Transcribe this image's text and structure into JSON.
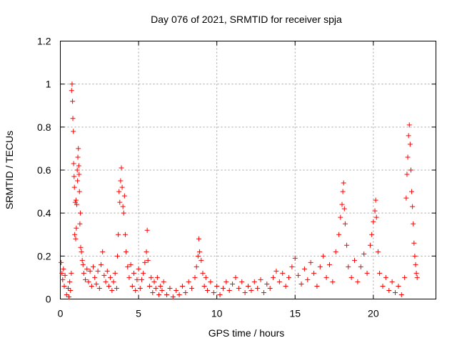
{
  "chart_data": {
    "type": "scatter",
    "title": "Day 076 of 2021, SRMTID for receiver spja",
    "xlabel": "GPS time / hours",
    "ylabel": "SRMTID / TECUs",
    "xlim": [
      0,
      24
    ],
    "ylim": [
      0,
      1.2
    ],
    "xticks": [
      0,
      5,
      10,
      15,
      20
    ],
    "xtick_labels": [
      "0",
      "5",
      "10",
      "15",
      "20"
    ],
    "yticks": [
      0,
      0.2,
      0.4,
      0.6,
      0.8,
      1,
      1.2
    ],
    "ytick_labels": [
      "0",
      "0.2",
      "0.4",
      "0.6",
      "0.8",
      "1",
      "1.2"
    ],
    "grid": true,
    "marker": "plus",
    "color": "#ff0000",
    "series": [
      {
        "name": "SRMTID",
        "points": [
          [
            0.05,
            0.17
          ],
          [
            0.1,
            0.12
          ],
          [
            0.15,
            0.09
          ],
          [
            0.2,
            0.14
          ],
          [
            0.25,
            0.06
          ],
          [
            0.3,
            0.11
          ],
          [
            0.4,
            0.02
          ],
          [
            0.5,
            0.05
          ],
          [
            0.55,
            0.01
          ],
          [
            0.6,
            0.08
          ],
          [
            0.65,
            0.04
          ],
          [
            0.7,
            0.12
          ],
          [
            0.72,
            0.97
          ],
          [
            0.75,
            1.0
          ],
          [
            0.78,
            0.92
          ],
          [
            0.8,
            0.84
          ],
          [
            0.83,
            0.78
          ],
          [
            0.85,
            0.63
          ],
          [
            0.88,
            0.57
          ],
          [
            0.9,
            0.52
          ],
          [
            0.92,
            0.3
          ],
          [
            0.95,
            0.45
          ],
          [
            0.98,
            0.28
          ],
          [
            1.0,
            0.46
          ],
          [
            1.02,
            0.33
          ],
          [
            1.05,
            0.44
          ],
          [
            1.08,
            0.6
          ],
          [
            1.1,
            0.55
          ],
          [
            1.12,
            0.66
          ],
          [
            1.15,
            0.7
          ],
          [
            1.18,
            0.62
          ],
          [
            1.2,
            0.58
          ],
          [
            1.22,
            0.5
          ],
          [
            1.25,
            0.35
          ],
          [
            1.28,
            0.4
          ],
          [
            1.3,
            0.24
          ],
          [
            1.35,
            0.22
          ],
          [
            1.4,
            0.18
          ],
          [
            1.45,
            0.16
          ],
          [
            1.5,
            0.12
          ],
          [
            1.6,
            0.09
          ],
          [
            1.7,
            0.14
          ],
          [
            1.8,
            0.08
          ],
          [
            1.9,
            0.13
          ],
          [
            2.0,
            0.06
          ],
          [
            2.1,
            0.15
          ],
          [
            2.2,
            0.1
          ],
          [
            2.3,
            0.07
          ],
          [
            2.4,
            0.13
          ],
          [
            2.5,
            0.05
          ],
          [
            2.6,
            0.16
          ],
          [
            2.7,
            0.22
          ],
          [
            2.8,
            0.11
          ],
          [
            2.9,
            0.08
          ],
          [
            3.0,
            0.13
          ],
          [
            3.1,
            0.06
          ],
          [
            3.2,
            0.1
          ],
          [
            3.3,
            0.04
          ],
          [
            3.4,
            0.08
          ],
          [
            3.5,
            0.12
          ],
          [
            3.6,
            0.05
          ],
          [
            3.65,
            0.2
          ],
          [
            3.7,
            0.3
          ],
          [
            3.75,
            0.5
          ],
          [
            3.8,
            0.45
          ],
          [
            3.85,
            0.55
          ],
          [
            3.9,
            0.61
          ],
          [
            3.95,
            0.52
          ],
          [
            4.0,
            0.43
          ],
          [
            4.05,
            0.4
          ],
          [
            4.1,
            0.48
          ],
          [
            4.15,
            0.3
          ],
          [
            4.2,
            0.22
          ],
          [
            4.3,
            0.15
          ],
          [
            4.4,
            0.1
          ],
          [
            4.5,
            0.16
          ],
          [
            4.6,
            0.06
          ],
          [
            4.7,
            0.12
          ],
          [
            4.8,
            0.04
          ],
          [
            4.9,
            0.09
          ],
          [
            5.0,
            0.14
          ],
          [
            5.1,
            0.05
          ],
          [
            5.2,
            0.09
          ],
          [
            5.3,
            0.12
          ],
          [
            5.4,
            0.17
          ],
          [
            5.5,
            0.22
          ],
          [
            5.55,
            0.32
          ],
          [
            5.6,
            0.18
          ],
          [
            5.7,
            0.06
          ],
          [
            5.8,
            0.1
          ],
          [
            5.9,
            0.03
          ],
          [
            6.0,
            0.08
          ],
          [
            6.1,
            0.05
          ],
          [
            6.2,
            0.1
          ],
          [
            6.3,
            0.02
          ],
          [
            6.4,
            0.06
          ],
          [
            6.5,
            0.04
          ],
          [
            6.6,
            0.08
          ],
          [
            6.8,
            0.02
          ],
          [
            7.0,
            0.05
          ],
          [
            7.2,
            0.01
          ],
          [
            7.4,
            0.04
          ],
          [
            7.6,
            0.02
          ],
          [
            7.8,
            0.06
          ],
          [
            8.0,
            0.03
          ],
          [
            8.2,
            0.08
          ],
          [
            8.4,
            0.05
          ],
          [
            8.6,
            0.1
          ],
          [
            8.7,
            0.15
          ],
          [
            8.8,
            0.2
          ],
          [
            8.85,
            0.28
          ],
          [
            8.9,
            0.22
          ],
          [
            9.0,
            0.18
          ],
          [
            9.1,
            0.12
          ],
          [
            9.2,
            0.06
          ],
          [
            9.3,
            0.1
          ],
          [
            9.4,
            0.04
          ],
          [
            9.6,
            0.08
          ],
          [
            9.8,
            0.03
          ],
          [
            10.0,
            0.06
          ],
          [
            10.2,
            0.02
          ],
          [
            10.4,
            0.05
          ],
          [
            10.6,
            0.08
          ],
          [
            10.8,
            0.04
          ],
          [
            11.0,
            0.07
          ],
          [
            11.2,
            0.1
          ],
          [
            11.4,
            0.05
          ],
          [
            11.6,
            0.08
          ],
          [
            11.8,
            0.03
          ],
          [
            12.0,
            0.06
          ],
          [
            12.2,
            0.04
          ],
          [
            12.4,
            0.08
          ],
          [
            12.6,
            0.05
          ],
          [
            12.8,
            0.09
          ],
          [
            13.0,
            0.03
          ],
          [
            13.2,
            0.07
          ],
          [
            13.4,
            0.05
          ],
          [
            13.6,
            0.1
          ],
          [
            13.8,
            0.13
          ],
          [
            14.0,
            0.08
          ],
          [
            14.2,
            0.12
          ],
          [
            14.4,
            0.06
          ],
          [
            14.6,
            0.1
          ],
          [
            14.8,
            0.15
          ],
          [
            15.0,
            0.19
          ],
          [
            15.2,
            0.11
          ],
          [
            15.4,
            0.07
          ],
          [
            15.6,
            0.14
          ],
          [
            15.8,
            0.09
          ],
          [
            16.0,
            0.17
          ],
          [
            16.2,
            0.12
          ],
          [
            16.4,
            0.06
          ],
          [
            16.6,
            0.15
          ],
          [
            16.8,
            0.2
          ],
          [
            17.0,
            0.1
          ],
          [
            17.2,
            0.16
          ],
          [
            17.4,
            0.08
          ],
          [
            17.6,
            0.22
          ],
          [
            17.8,
            0.3
          ],
          [
            17.9,
            0.38
          ],
          [
            18.0,
            0.44
          ],
          [
            18.05,
            0.5
          ],
          [
            18.1,
            0.54
          ],
          [
            18.15,
            0.42
          ],
          [
            18.2,
            0.35
          ],
          [
            18.3,
            0.25
          ],
          [
            18.4,
            0.15
          ],
          [
            18.6,
            0.1
          ],
          [
            18.8,
            0.18
          ],
          [
            19.0,
            0.08
          ],
          [
            19.2,
            0.15
          ],
          [
            19.4,
            0.21
          ],
          [
            19.6,
            0.12
          ],
          [
            19.8,
            0.25
          ],
          [
            19.9,
            0.3
          ],
          [
            20.0,
            0.36
          ],
          [
            20.1,
            0.41
          ],
          [
            20.15,
            0.46
          ],
          [
            20.2,
            0.38
          ],
          [
            20.3,
            0.22
          ],
          [
            20.4,
            0.12
          ],
          [
            20.6,
            0.06
          ],
          [
            20.8,
            0.1
          ],
          [
            21.0,
            0.04
          ],
          [
            21.2,
            0.08
          ],
          [
            21.4,
            0.03
          ],
          [
            21.6,
            0.06
          ],
          [
            21.8,
            0.02
          ],
          [
            22.0,
            0.1
          ],
          [
            22.1,
            0.47
          ],
          [
            22.15,
            0.58
          ],
          [
            22.2,
            0.66
          ],
          [
            22.25,
            0.76
          ],
          [
            22.3,
            0.81
          ],
          [
            22.35,
            0.72
          ],
          [
            22.4,
            0.6
          ],
          [
            22.45,
            0.5
          ],
          [
            22.5,
            0.43
          ],
          [
            22.55,
            0.35
          ],
          [
            22.6,
            0.26
          ],
          [
            22.65,
            0.2
          ],
          [
            22.7,
            0.16
          ],
          [
            22.75,
            0.12
          ],
          [
            22.8,
            0.1
          ]
        ]
      }
    ]
  }
}
